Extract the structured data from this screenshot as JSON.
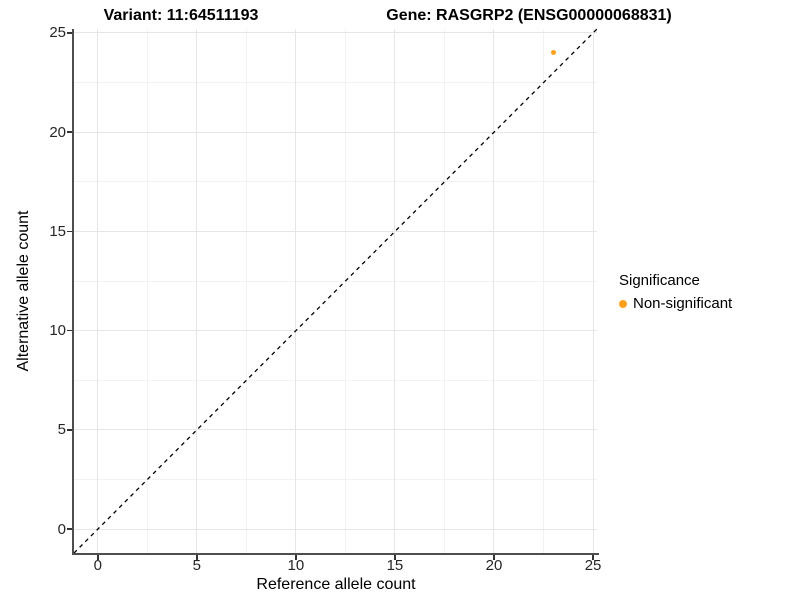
{
  "chart_data": {
    "type": "scatter",
    "title_left": "Variant: 11:64511193",
    "title_right": "Gene: RASGRP2 (ENSG00000068831)",
    "xlabel": "Reference allele count",
    "ylabel": "Alternative allele count",
    "xlim": [
      -1.2,
      25.2
    ],
    "ylim": [
      -1.2,
      25.2
    ],
    "x_ticks": [
      0,
      5,
      10,
      15,
      20,
      25
    ],
    "y_ticks": [
      0,
      5,
      10,
      15,
      20,
      25
    ],
    "x_minor_ticks": [
      2.5,
      7.5,
      12.5,
      17.5,
      22.5
    ],
    "y_minor_ticks": [
      2.5,
      7.5,
      12.5,
      17.5,
      22.5
    ],
    "grid": true,
    "legend_title": "Significance",
    "legend_position": "right",
    "reference_line": {
      "type": "identity-diagonal",
      "style": "dashed",
      "color": "#000000"
    },
    "series": [
      {
        "name": "Non-significant",
        "color": "#FFA01E",
        "points": [
          {
            "x": 23,
            "y": 24
          }
        ]
      }
    ]
  },
  "colors": {
    "accent_orange": "#FFA01E",
    "grid_major": "#e6e6e6",
    "grid_minor": "#f2f2f2",
    "axis_line": "#4e4e4e",
    "text": "#000000"
  }
}
